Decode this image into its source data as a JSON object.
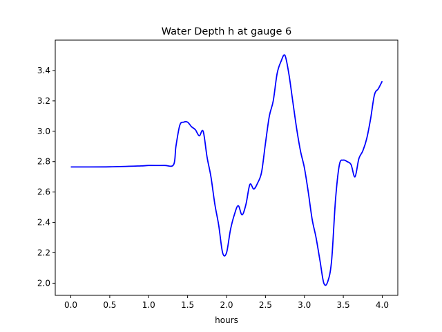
{
  "chart_data": {
    "type": "line",
    "title": "Water Depth h at gauge 6",
    "xlabel": "hours",
    "ylabel": "",
    "xlim": [
      -0.2,
      4.2
    ],
    "ylim": [
      1.92,
      3.6
    ],
    "xticks": [
      0.0,
      0.5,
      1.0,
      1.5,
      2.0,
      2.5,
      3.0,
      3.5,
      4.0
    ],
    "xtick_labels": [
      "0.0",
      "0.5",
      "1.0",
      "1.5",
      "2.0",
      "2.5",
      "3.0",
      "3.5",
      "4.0"
    ],
    "yticks": [
      2.0,
      2.2,
      2.4,
      2.6,
      2.8,
      3.0,
      3.2,
      3.4
    ],
    "ytick_labels": [
      "2.0",
      "2.2",
      "2.4",
      "2.6",
      "2.8",
      "3.0",
      "3.2",
      "3.4"
    ],
    "grid": false,
    "series": [
      {
        "color": "#0000ff",
        "x": [
          0.0,
          0.5,
          0.9,
          1.0,
          1.2,
          1.32,
          1.35,
          1.4,
          1.45,
          1.5,
          1.55,
          1.6,
          1.65,
          1.7,
          1.75,
          1.8,
          1.85,
          1.9,
          1.95,
          2.0,
          2.05,
          2.1,
          2.15,
          2.2,
          2.25,
          2.3,
          2.35,
          2.4,
          2.45,
          2.5,
          2.55,
          2.6,
          2.65,
          2.7,
          2.75,
          2.8,
          2.85,
          2.9,
          2.95,
          3.0,
          3.05,
          3.1,
          3.15,
          3.2,
          3.25,
          3.3,
          3.35,
          3.4,
          3.45,
          3.5,
          3.55,
          3.6,
          3.65,
          3.7,
          3.75,
          3.8,
          3.85,
          3.9,
          3.95,
          4.0
        ],
        "y": [
          2.765,
          2.766,
          2.772,
          2.775,
          2.775,
          2.78,
          2.9,
          3.04,
          3.06,
          3.06,
          3.03,
          3.01,
          2.97,
          3.0,
          2.83,
          2.7,
          2.52,
          2.38,
          2.2,
          2.2,
          2.35,
          2.45,
          2.51,
          2.45,
          2.52,
          2.65,
          2.62,
          2.66,
          2.73,
          2.92,
          3.1,
          3.2,
          3.38,
          3.46,
          3.5,
          3.38,
          3.2,
          3.02,
          2.87,
          2.76,
          2.6,
          2.42,
          2.3,
          2.15,
          2.0,
          2.01,
          2.15,
          2.55,
          2.78,
          2.81,
          2.8,
          2.78,
          2.7,
          2.82,
          2.87,
          2.95,
          3.08,
          3.24,
          3.28,
          3.33
        ]
      }
    ]
  }
}
